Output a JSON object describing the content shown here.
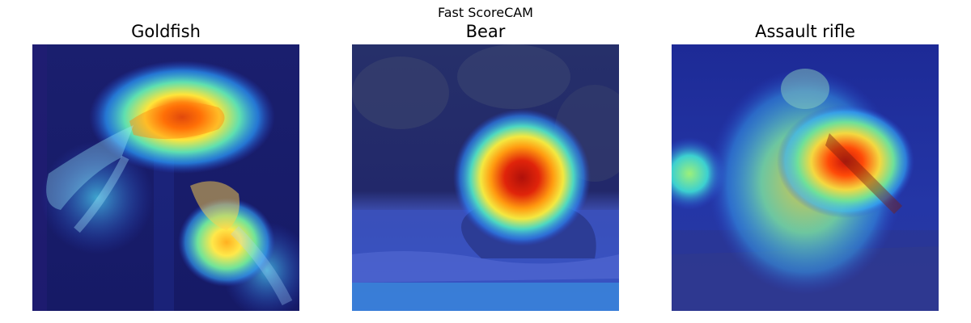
{
  "figure": {
    "suptitle": "Fast ScoreCAM"
  },
  "panels": [
    {
      "title": "Goldfish",
      "subject": "goldfish",
      "colormap": "jet"
    },
    {
      "title": "Bear",
      "subject": "bear",
      "colormap": "jet"
    },
    {
      "title": "Assault rifle",
      "subject": "soldier with assault rifle",
      "colormap": "jet"
    }
  ],
  "colors": {
    "overlay_base": "#1d2a8a",
    "hot": "#d81e05",
    "warm": "#f7e233",
    "mid": "#3fd0c0",
    "cool": "#2b5cff"
  }
}
